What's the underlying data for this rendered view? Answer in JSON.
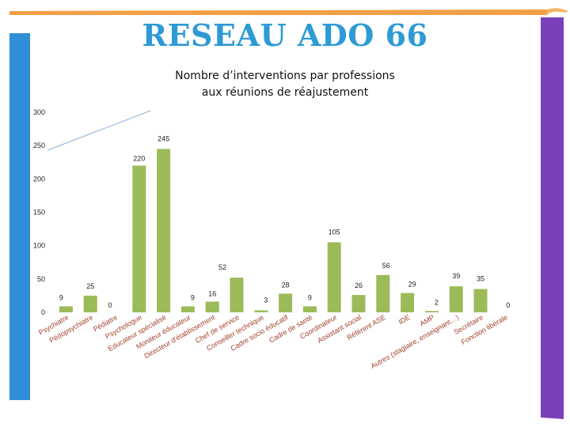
{
  "slide": {
    "title": "RESEAU ADO 66",
    "accent_colors": {
      "orange": "#f2a048",
      "purple": "#7b3fb8",
      "blue": "#2f8fd6",
      "bars": "#9bbb59",
      "title": "#2e9ad6"
    }
  },
  "chart_data": {
    "type": "bar",
    "title": "Nombre d’interventions par professions aux réunions de réajustement",
    "title_lines": [
      "Nombre d’interventions par professions",
      "aux réunions de réajustement"
    ],
    "categories": [
      "Psychiatre",
      "Pédopsychiatre",
      "Pédiatre",
      "Psychologue",
      "Educateur spécialisé",
      "Moniteur éducateur",
      "Directeur d'établissement",
      "Chef de service",
      "Conseiller technique",
      "Cadre socio éducatif",
      "Cadre de santé",
      "Coordinateur",
      "Assistant social",
      "Référent ASE",
      "IDE",
      "AMP",
      "Autres (stagiaire, enseignant…)",
      "Secrétaire",
      "Fonction libérale"
    ],
    "values": [
      9,
      25,
      0,
      220,
      245,
      9,
      16,
      52,
      3,
      28,
      9,
      105,
      26,
      56,
      29,
      2,
      39,
      35,
      0
    ],
    "ylim": [
      0,
      300
    ],
    "yticks": [
      0,
      50,
      100,
      150,
      200,
      250,
      300
    ],
    "grid": false,
    "legend": "none",
    "bar_color": "#9bbb59"
  }
}
